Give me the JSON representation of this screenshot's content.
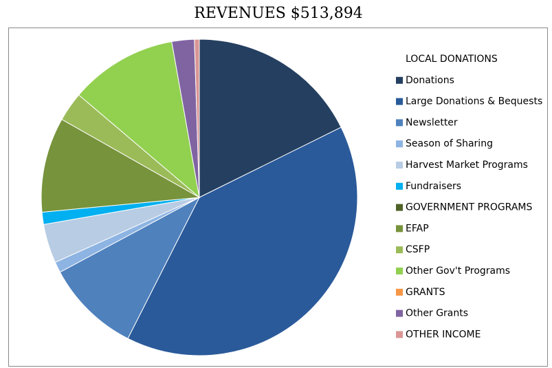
{
  "chart_data": {
    "type": "pie",
    "title": "REVENUES $513,894",
    "categories": [
      "LOCAL DONATIONS",
      "Donations",
      "Large Donations & Bequests",
      "Newsletter",
      "Season of Sharing",
      "Harvest Market Programs",
      "Fundraisers",
      "GOVERNMENT PROGRAMS",
      "EFAP",
      "CSFP",
      "Other Gov't Programs",
      "GRANTS",
      "Other Grants",
      "OTHER INCOME"
    ],
    "values": [
      0,
      17.7,
      39.8,
      9.7,
      1.1,
      4,
      1.25,
      0,
      9.7,
      3,
      11,
      0,
      2.3,
      0.5
    ],
    "colors": [
      "#ffffff",
      "#243f60",
      "#2a5a9a",
      "#4f81bd",
      "#8db4e2",
      "#b8cce4",
      "#00b0f0",
      "#4f6228",
      "#77933c",
      "#9bbb59",
      "#92d050",
      "#f79646",
      "#8064a2",
      "#d99694"
    ],
    "legend": "right"
  }
}
